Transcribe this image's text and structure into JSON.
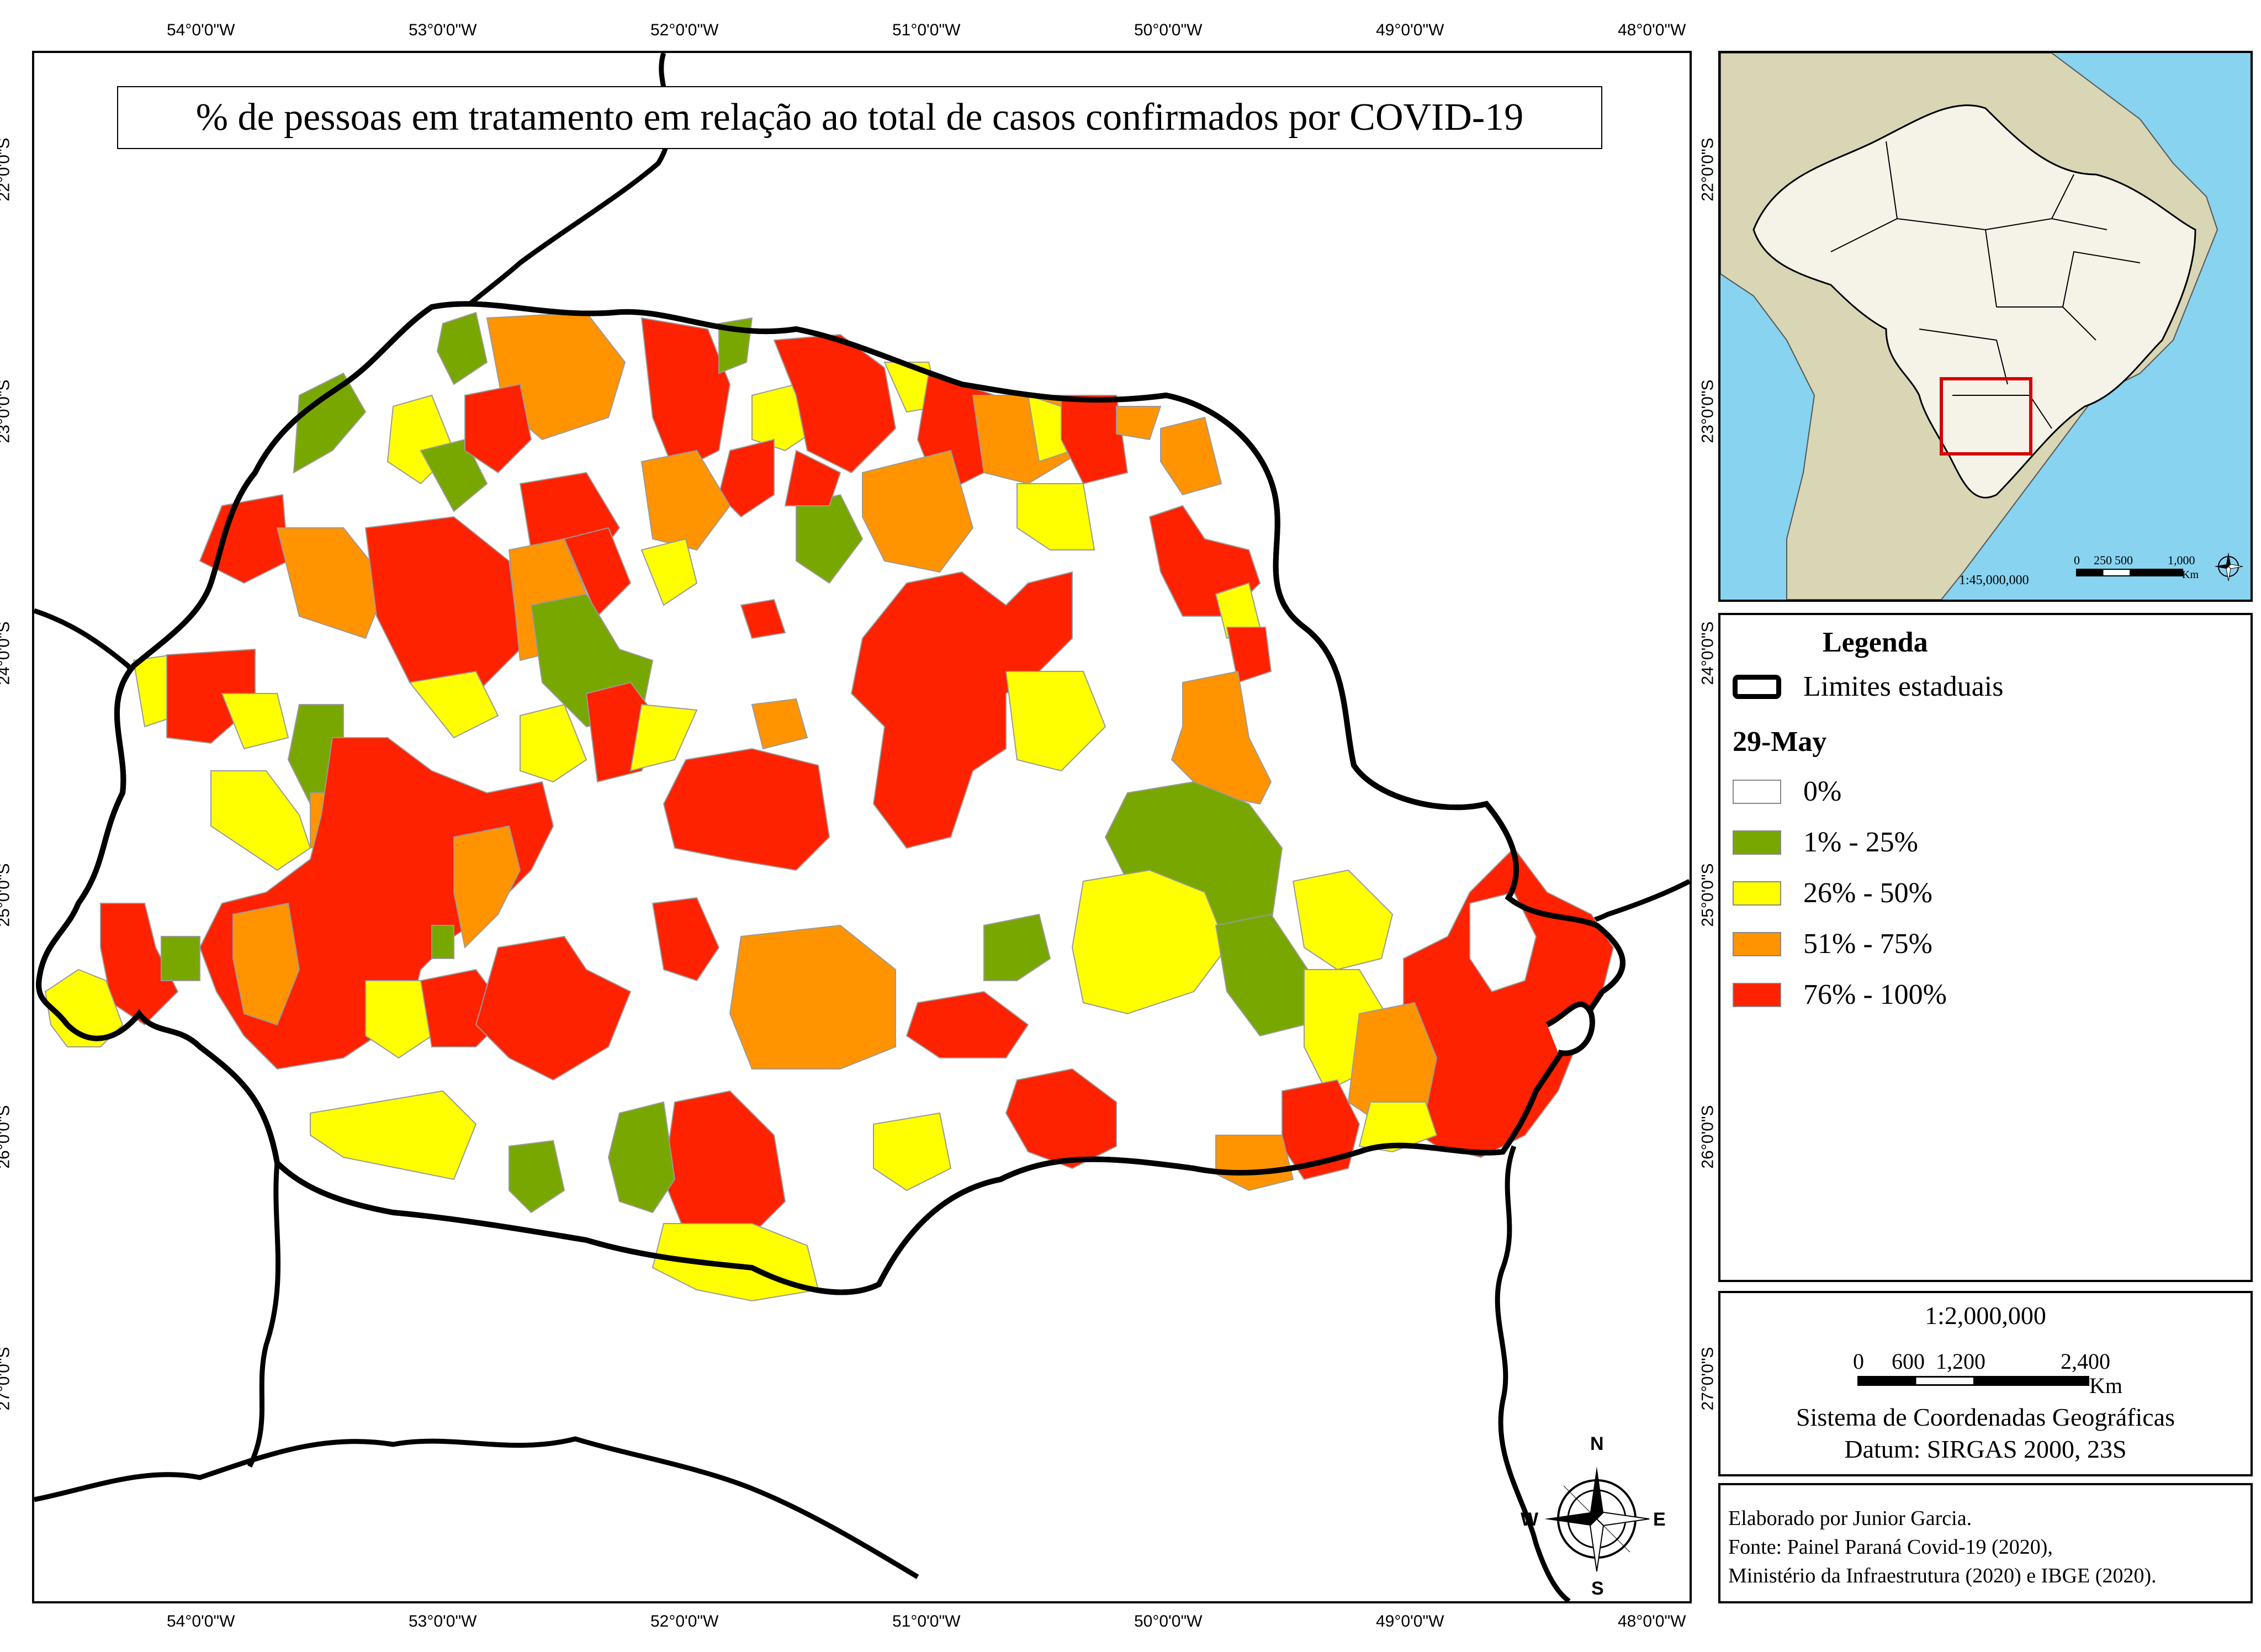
{
  "title": "% de pessoas em tratamento em relação ao total de casos confirmados por COVID-19",
  "coords": {
    "lon": [
      "54°0'0\"W",
      "53°0'0\"W",
      "52°0'0\"W",
      "51°0'0\"W",
      "50°0'0\"W",
      "49°0'0\"W",
      "48°0'0\"W"
    ],
    "lat": [
      "22°0'0\"S",
      "23°0'0\"S",
      "24°0'0\"S",
      "25°0'0\"S",
      "26°0'0\"S",
      "27°0'0\"S"
    ]
  },
  "legend": {
    "title": "Legenda",
    "boundary_label": "Limites estaduais",
    "date": "29-May",
    "classes": [
      {
        "label": "0%",
        "color": "#ffffff"
      },
      {
        "label": "1% - 25%",
        "color": "#78a800"
      },
      {
        "label": "26% - 50%",
        "color": "#ffff00"
      },
      {
        "label": "51% - 75%",
        "color": "#ff9400"
      },
      {
        "label": "76% - 100%",
        "color": "#ff2200"
      }
    ]
  },
  "scale": {
    "ratio": "1:2,000,000",
    "ticks": [
      "0",
      "600",
      "1,200",
      "2,400"
    ],
    "unit": "Km",
    "crs_line1": "Sistema de Coordenadas Geográficas",
    "crs_line2": "Datum: SIRGAS 2000, 23S"
  },
  "inset": {
    "ratio": "1:45,000,000",
    "ticks": [
      "0",
      "250",
      "500",
      "1,000"
    ],
    "unit": "Km",
    "ocean_color": "#87d3f0",
    "land_color": "#d8d6b4",
    "brazil_color": "#f5f3e8",
    "highlight_color": "#d40000"
  },
  "compass": {
    "n": "N",
    "s": "S",
    "e": "E",
    "w": "W"
  },
  "credits": {
    "line1": "Elaborado por Junior Garcia.",
    "line2": "Fonte: Painel Paraná Covid-19 (2020),",
    "line3": "Ministério da Infraestrutura (2020) e IBGE (2020)."
  }
}
